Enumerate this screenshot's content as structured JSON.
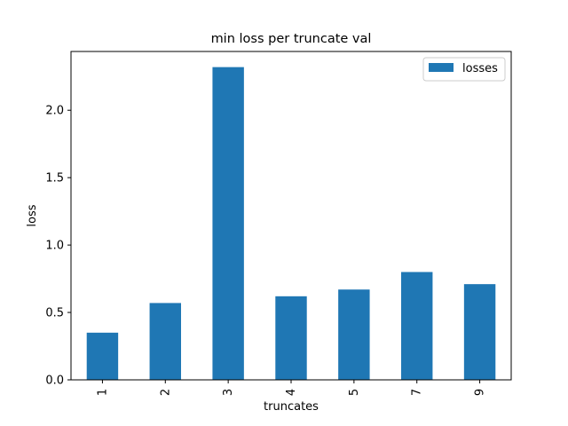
{
  "chart_data": {
    "type": "bar",
    "title": "min loss per truncate val",
    "xlabel": "truncates",
    "ylabel": "loss",
    "categories": [
      "1",
      "2",
      "3",
      "4",
      "5",
      "7",
      "9"
    ],
    "series": [
      {
        "name": "losses",
        "values": [
          0.35,
          0.57,
          2.32,
          0.62,
          0.67,
          0.8,
          0.71
        ],
        "color": "#1f77b4"
      }
    ],
    "ylim": [
      0,
      2.436
    ],
    "yticks": [
      0.0,
      0.5,
      1.0,
      1.5,
      2.0
    ],
    "ytick_labels": [
      "0.0",
      "0.5",
      "1.0",
      "1.5",
      "2.0"
    ],
    "grid": false,
    "legend_position": "top-right"
  }
}
